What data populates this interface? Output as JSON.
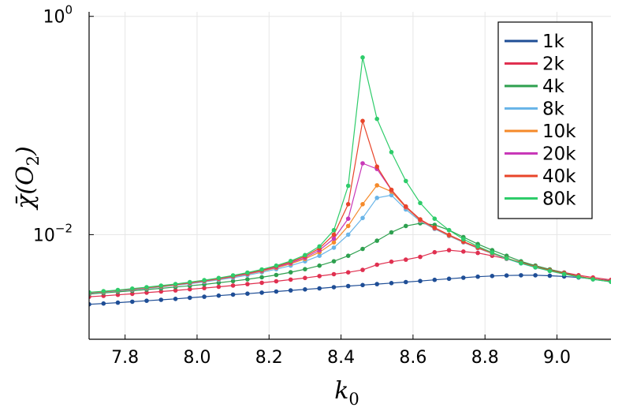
{
  "chart_data": {
    "type": "line",
    "xlabel": {
      "main": "k",
      "sub": "0"
    },
    "ylabel": {
      "main": "χ̄(O",
      "sub": "2",
      "close": ")"
    },
    "yscale": "log",
    "xlim": [
      7.7,
      9.15
    ],
    "ylim": [
      0.0011,
      1.1
    ],
    "x_ticks": [
      {
        "value": 7.8,
        "label": "7.8"
      },
      {
        "value": 8.0,
        "label": "8.0"
      },
      {
        "value": 8.2,
        "label": "8.2"
      },
      {
        "value": 8.4,
        "label": "8.4"
      },
      {
        "value": 8.6,
        "label": "8.6"
      },
      {
        "value": 8.8,
        "label": "8.8"
      },
      {
        "value": 9.0,
        "label": "9.0"
      }
    ],
    "y_ticks": [
      {
        "value": 1.0,
        "base": "10",
        "exp": "0"
      },
      {
        "value": 0.01,
        "base": "10",
        "exp": "−2"
      }
    ],
    "grid": true,
    "legend_position": "top-right",
    "series": [
      {
        "name": "1k",
        "color": "#1f4e96",
        "x": [
          7.7,
          7.74,
          7.78,
          7.82,
          7.86,
          7.9,
          7.94,
          7.98,
          8.02,
          8.06,
          8.1,
          8.14,
          8.18,
          8.22,
          8.26,
          8.3,
          8.34,
          8.38,
          8.42,
          8.46,
          8.5,
          8.54,
          8.58,
          8.62,
          8.66,
          8.7,
          8.74,
          8.78,
          8.82,
          8.86,
          8.9,
          8.94,
          8.98,
          9.02,
          9.06,
          9.1,
          9.15
        ],
        "y": [
          0.0023,
          0.00234,
          0.00238,
          0.00243,
          0.00248,
          0.00253,
          0.00258,
          0.00264,
          0.0027,
          0.00276,
          0.00282,
          0.00288,
          0.00294,
          0.00301,
          0.00308,
          0.00315,
          0.00322,
          0.0033,
          0.00338,
          0.00345,
          0.00352,
          0.0036,
          0.00368,
          0.00376,
          0.00385,
          0.00394,
          0.00403,
          0.00412,
          0.00418,
          0.00422,
          0.00424,
          0.00424,
          0.0042,
          0.00414,
          0.00405,
          0.00393,
          0.00378
        ]
      },
      {
        "name": "2k",
        "color": "#e03050",
        "x": [
          7.7,
          7.74,
          7.78,
          7.82,
          7.86,
          7.9,
          7.94,
          7.98,
          8.02,
          8.06,
          8.1,
          8.14,
          8.18,
          8.22,
          8.26,
          8.3,
          8.34,
          8.38,
          8.42,
          8.46,
          8.5,
          8.54,
          8.58,
          8.62,
          8.66,
          8.7,
          8.74,
          8.78,
          8.82,
          8.86,
          8.9,
          8.94,
          8.98,
          9.02,
          9.06,
          9.1,
          9.15
        ],
        "y": [
          0.0027,
          0.00275,
          0.00281,
          0.00287,
          0.00294,
          0.00301,
          0.00308,
          0.00316,
          0.00324,
          0.00333,
          0.00342,
          0.00352,
          0.00362,
          0.00374,
          0.00387,
          0.00401,
          0.00417,
          0.00434,
          0.00451,
          0.00475,
          0.0053,
          0.00565,
          0.0059,
          0.00625,
          0.0069,
          0.0072,
          0.007,
          0.0068,
          0.0064,
          0.006,
          0.0056,
          0.0052,
          0.0048,
          0.0045,
          0.00425,
          0.00405,
          0.00385
        ]
      },
      {
        "name": "4k",
        "color": "#2ea04f",
        "x": [
          7.7,
          7.74,
          7.78,
          7.82,
          7.86,
          7.9,
          7.94,
          7.98,
          8.02,
          8.06,
          8.1,
          8.14,
          8.18,
          8.22,
          8.26,
          8.3,
          8.34,
          8.38,
          8.42,
          8.46,
          8.5,
          8.54,
          8.58,
          8.62,
          8.66,
          8.7,
          8.74,
          8.78,
          8.82,
          8.86,
          8.9,
          8.94,
          8.98,
          9.02,
          9.06,
          9.1,
          9.15
        ],
        "y": [
          0.00285,
          0.00292,
          0.00299,
          0.00306,
          0.00314,
          0.00322,
          0.00331,
          0.0034,
          0.0035,
          0.00362,
          0.00375,
          0.0039,
          0.00407,
          0.00427,
          0.00452,
          0.00482,
          0.0052,
          0.0057,
          0.0064,
          0.0074,
          0.0088,
          0.0105,
          0.012,
          0.0127,
          0.0123,
          0.011,
          0.0095,
          0.0082,
          0.0072,
          0.0064,
          0.0057,
          0.0052,
          0.0048,
          0.00445,
          0.00415,
          0.0039,
          0.0037
        ]
      },
      {
        "name": "8k",
        "color": "#6ab5e8",
        "x": [
          7.7,
          7.74,
          7.78,
          7.82,
          7.86,
          7.9,
          7.94,
          7.98,
          8.02,
          8.06,
          8.1,
          8.14,
          8.18,
          8.22,
          8.26,
          8.3,
          8.34,
          8.38,
          8.42,
          8.46,
          8.5,
          8.54,
          8.58,
          8.62,
          8.66,
          8.7,
          8.74,
          8.78,
          8.82,
          8.86,
          8.9,
          8.94,
          8.98,
          9.02,
          9.06,
          9.1,
          9.15
        ],
        "y": [
          0.0029,
          0.00297,
          0.00305,
          0.00313,
          0.00322,
          0.00332,
          0.00343,
          0.00355,
          0.00369,
          0.00385,
          0.00403,
          0.00425,
          0.00451,
          0.00482,
          0.0052,
          0.0057,
          0.0064,
          0.0076,
          0.01,
          0.0142,
          0.0217,
          0.023,
          0.017,
          0.0133,
          0.0113,
          0.0097,
          0.0085,
          0.0075,
          0.0067,
          0.006,
          0.00545,
          0.005,
          0.00465,
          0.00435,
          0.0041,
          0.0039,
          0.0037
        ]
      },
      {
        "name": "10k",
        "color": "#f58a2a",
        "x": [
          7.7,
          7.74,
          7.78,
          7.82,
          7.86,
          7.9,
          7.94,
          7.98,
          8.02,
          8.06,
          8.1,
          8.14,
          8.18,
          8.22,
          8.26,
          8.3,
          8.34,
          8.38,
          8.42,
          8.46,
          8.5,
          8.54,
          8.58,
          8.62,
          8.66,
          8.7,
          8.74,
          8.78,
          8.82,
          8.86,
          8.9,
          8.94,
          8.98,
          9.02,
          9.06,
          9.1,
          9.15
        ],
        "y": [
          0.00292,
          0.00299,
          0.00307,
          0.00315,
          0.00325,
          0.00335,
          0.00346,
          0.00359,
          0.00374,
          0.00391,
          0.00411,
          0.00434,
          0.00462,
          0.00496,
          0.0054,
          0.006,
          0.0069,
          0.0085,
          0.012,
          0.019,
          0.0283,
          0.0248,
          0.0178,
          0.0135,
          0.0114,
          0.0098,
          0.00855,
          0.00755,
          0.00675,
          0.00605,
          0.0055,
          0.00505,
          0.00468,
          0.00438,
          0.00412,
          0.00392,
          0.00372
        ]
      },
      {
        "name": "20k",
        "color": "#c838b8",
        "x": [
          7.7,
          7.74,
          7.78,
          7.82,
          7.86,
          7.9,
          7.94,
          7.98,
          8.02,
          8.06,
          8.1,
          8.14,
          8.18,
          8.22,
          8.26,
          8.3,
          8.34,
          8.38,
          8.42,
          8.46,
          8.5,
          8.54,
          8.58,
          8.62,
          8.66,
          8.7,
          8.74,
          8.78,
          8.82,
          8.86,
          8.9,
          8.94,
          8.98,
          9.02,
          9.06,
          9.1,
          9.15
        ],
        "y": [
          0.00293,
          0.003,
          0.00308,
          0.00316,
          0.00326,
          0.00336,
          0.00348,
          0.00361,
          0.00376,
          0.00394,
          0.00414,
          0.00438,
          0.00467,
          0.00503,
          0.0055,
          0.00615,
          0.0072,
          0.0092,
          0.014,
          0.045,
          0.04,
          0.0256,
          0.018,
          0.0137,
          0.0115,
          0.0099,
          0.0086,
          0.0076,
          0.00678,
          0.00608,
          0.00552,
          0.00507,
          0.0047,
          0.0044,
          0.00414,
          0.00393,
          0.00373
        ]
      },
      {
        "name": "40k",
        "color": "#e8452a",
        "x": [
          7.7,
          7.74,
          7.78,
          7.82,
          7.86,
          7.9,
          7.94,
          7.98,
          8.02,
          8.06,
          8.1,
          8.14,
          8.18,
          8.22,
          8.26,
          8.3,
          8.34,
          8.38,
          8.42,
          8.46,
          8.5,
          8.54,
          8.58,
          8.62,
          8.66,
          8.7,
          8.74,
          8.78,
          8.82,
          8.86,
          8.9,
          8.94,
          8.98,
          9.02,
          9.06,
          9.1,
          9.15
        ],
        "y": [
          0.00294,
          0.00301,
          0.00309,
          0.00318,
          0.00327,
          0.00338,
          0.0035,
          0.00363,
          0.00379,
          0.00397,
          0.00418,
          0.00443,
          0.00473,
          0.00511,
          0.00562,
          0.00633,
          0.0075,
          0.01,
          0.019,
          0.11,
          0.042,
          0.0258,
          0.0181,
          0.0138,
          0.0116,
          0.00995,
          0.00865,
          0.00763,
          0.0068,
          0.0061,
          0.00554,
          0.00508,
          0.00471,
          0.00441,
          0.00415,
          0.00394,
          0.00374
        ]
      },
      {
        "name": "80k",
        "color": "#2ecc6a",
        "x": [
          7.7,
          7.74,
          7.78,
          7.82,
          7.86,
          7.9,
          7.94,
          7.98,
          8.02,
          8.06,
          8.1,
          8.14,
          8.18,
          8.22,
          8.26,
          8.3,
          8.34,
          8.38,
          8.42,
          8.46,
          8.5,
          8.54,
          8.58,
          8.62,
          8.66,
          8.7,
          8.74,
          8.78,
          8.82,
          8.86,
          8.9,
          8.94,
          8.98,
          9.02,
          9.06,
          9.1,
          9.15
        ],
        "y": [
          0.00296,
          0.00303,
          0.00311,
          0.0032,
          0.0033,
          0.00341,
          0.00353,
          0.00367,
          0.00383,
          0.00401,
          0.00423,
          0.00449,
          0.0048,
          0.0052,
          0.00573,
          0.0065,
          0.0078,
          0.011,
          0.028,
          0.42,
          0.115,
          0.057,
          0.031,
          0.0195,
          0.014,
          0.011,
          0.0091,
          0.0078,
          0.00685,
          0.00608,
          0.00548,
          0.00502,
          0.00465,
          0.00435,
          0.0041,
          0.0039,
          0.0037
        ]
      }
    ]
  }
}
